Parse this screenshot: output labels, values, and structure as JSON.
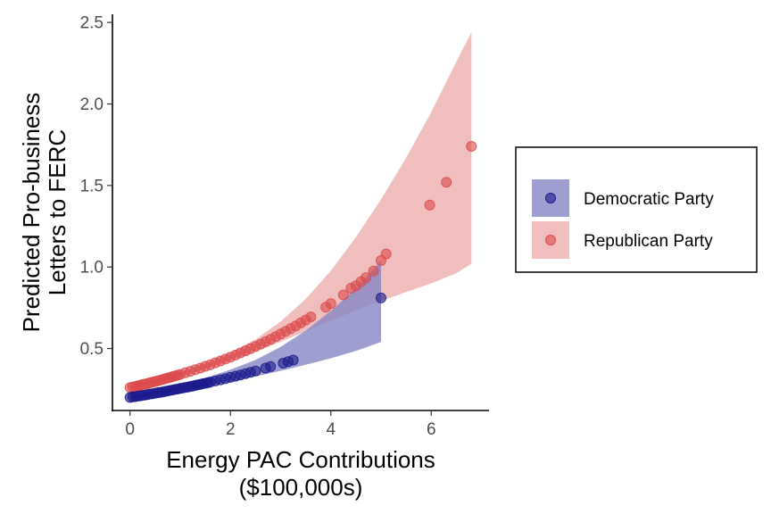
{
  "chart_data": {
    "type": "scatter",
    "xlabel": [
      "Energy PAC Contributions",
      "($100,000s)"
    ],
    "ylabel": [
      "Predicted Pro-business",
      "Letters to FERC"
    ],
    "xlim": [
      -0.35,
      7.15
    ],
    "ylim": [
      0.12,
      2.55
    ],
    "x_ticks": [
      0,
      2,
      4,
      6
    ],
    "x_tick_labels": [
      "0",
      "2",
      "4",
      "6"
    ],
    "y_ticks": [
      0.5,
      1.0,
      1.5,
      2.0,
      2.5
    ],
    "y_tick_labels": [
      "0.5",
      "1.0",
      "1.5",
      "2.0",
      "2.5"
    ],
    "grid": false,
    "legend_position": "right",
    "series": [
      {
        "name": "Democratic Party",
        "color": "#1a1a8c",
        "band_color": "#8686c4",
        "x": [
          0,
          0.05,
          0.1,
          0.15,
          0.2,
          0.25,
          0.3,
          0.35,
          0.4,
          0.45,
          0.5,
          0.55,
          0.6,
          0.65,
          0.7,
          0.75,
          0.8,
          0.85,
          0.9,
          0.95,
          1.0,
          1.05,
          1.1,
          1.15,
          1.2,
          1.25,
          1.3,
          1.35,
          1.4,
          1.45,
          1.5,
          1.55,
          1.6,
          1.7,
          1.8,
          1.9,
          2.0,
          2.1,
          2.2,
          2.3,
          2.4,
          2.5,
          2.7,
          2.8,
          3.05,
          3.15,
          3.25,
          5.0
        ],
        "y": [
          0.2,
          0.203,
          0.205,
          0.208,
          0.21,
          0.213,
          0.215,
          0.218,
          0.221,
          0.223,
          0.226,
          0.229,
          0.231,
          0.234,
          0.237,
          0.24,
          0.243,
          0.246,
          0.249,
          0.252,
          0.255,
          0.258,
          0.261,
          0.264,
          0.267,
          0.27,
          0.274,
          0.277,
          0.28,
          0.284,
          0.287,
          0.29,
          0.294,
          0.301,
          0.308,
          0.315,
          0.323,
          0.33,
          0.338,
          0.346,
          0.354,
          0.362,
          0.38,
          0.389,
          0.41,
          0.42,
          0.429,
          0.81
        ],
        "band": {
          "x": [
            0,
            0.5,
            1.0,
            1.5,
            2.0,
            2.5,
            3.0,
            3.5,
            4.0,
            4.5,
            5.0
          ],
          "lower": [
            0.19,
            0.214,
            0.24,
            0.268,
            0.297,
            0.329,
            0.363,
            0.4,
            0.44,
            0.485,
            0.54
          ],
          "upper": [
            0.21,
            0.24,
            0.275,
            0.32,
            0.37,
            0.43,
            0.51,
            0.61,
            0.73,
            0.87,
            1.04
          ]
        }
      },
      {
        "name": "Republican Party",
        "color": "#dc4a4a",
        "band_color": "#eeaeae",
        "x": [
          0,
          0.05,
          0.1,
          0.15,
          0.2,
          0.25,
          0.3,
          0.35,
          0.4,
          0.45,
          0.5,
          0.55,
          0.6,
          0.65,
          0.7,
          0.75,
          0.8,
          0.85,
          0.9,
          0.95,
          1.0,
          1.1,
          1.2,
          1.3,
          1.4,
          1.5,
          1.6,
          1.7,
          1.8,
          1.9,
          2.0,
          2.1,
          2.2,
          2.3,
          2.4,
          2.5,
          2.6,
          2.7,
          2.8,
          2.9,
          3.0,
          3.1,
          3.2,
          3.3,
          3.4,
          3.5,
          3.6,
          3.9,
          4.0,
          4.25,
          4.4,
          4.5,
          4.6,
          4.7,
          4.85,
          5.0,
          5.1,
          5.97,
          6.3,
          6.8
        ],
        "y": [
          0.26,
          0.264,
          0.267,
          0.271,
          0.275,
          0.279,
          0.282,
          0.286,
          0.29,
          0.294,
          0.298,
          0.302,
          0.306,
          0.31,
          0.315,
          0.319,
          0.323,
          0.328,
          0.332,
          0.337,
          0.341,
          0.351,
          0.36,
          0.37,
          0.38,
          0.391,
          0.401,
          0.412,
          0.424,
          0.435,
          0.447,
          0.46,
          0.473,
          0.486,
          0.499,
          0.513,
          0.527,
          0.542,
          0.557,
          0.573,
          0.589,
          0.605,
          0.622,
          0.639,
          0.657,
          0.675,
          0.694,
          0.753,
          0.775,
          0.829,
          0.87,
          0.885,
          0.91,
          0.935,
          0.975,
          1.04,
          1.08,
          1.38,
          1.52,
          1.74
        ],
        "band": {
          "x": [
            0,
            0.5,
            1.0,
            1.5,
            2.0,
            2.5,
            3.0,
            3.5,
            4.0,
            4.5,
            5.0,
            5.5,
            6.0,
            6.5,
            6.8
          ],
          "lower": [
            0.25,
            0.287,
            0.329,
            0.376,
            0.426,
            0.481,
            0.541,
            0.606,
            0.672,
            0.735,
            0.791,
            0.846,
            0.9,
            0.962,
            1.02
          ],
          "upper": [
            0.27,
            0.31,
            0.355,
            0.41,
            0.475,
            0.557,
            0.665,
            0.804,
            0.977,
            1.184,
            1.415,
            1.67,
            1.95,
            2.26,
            2.44
          ]
        }
      }
    ]
  }
}
